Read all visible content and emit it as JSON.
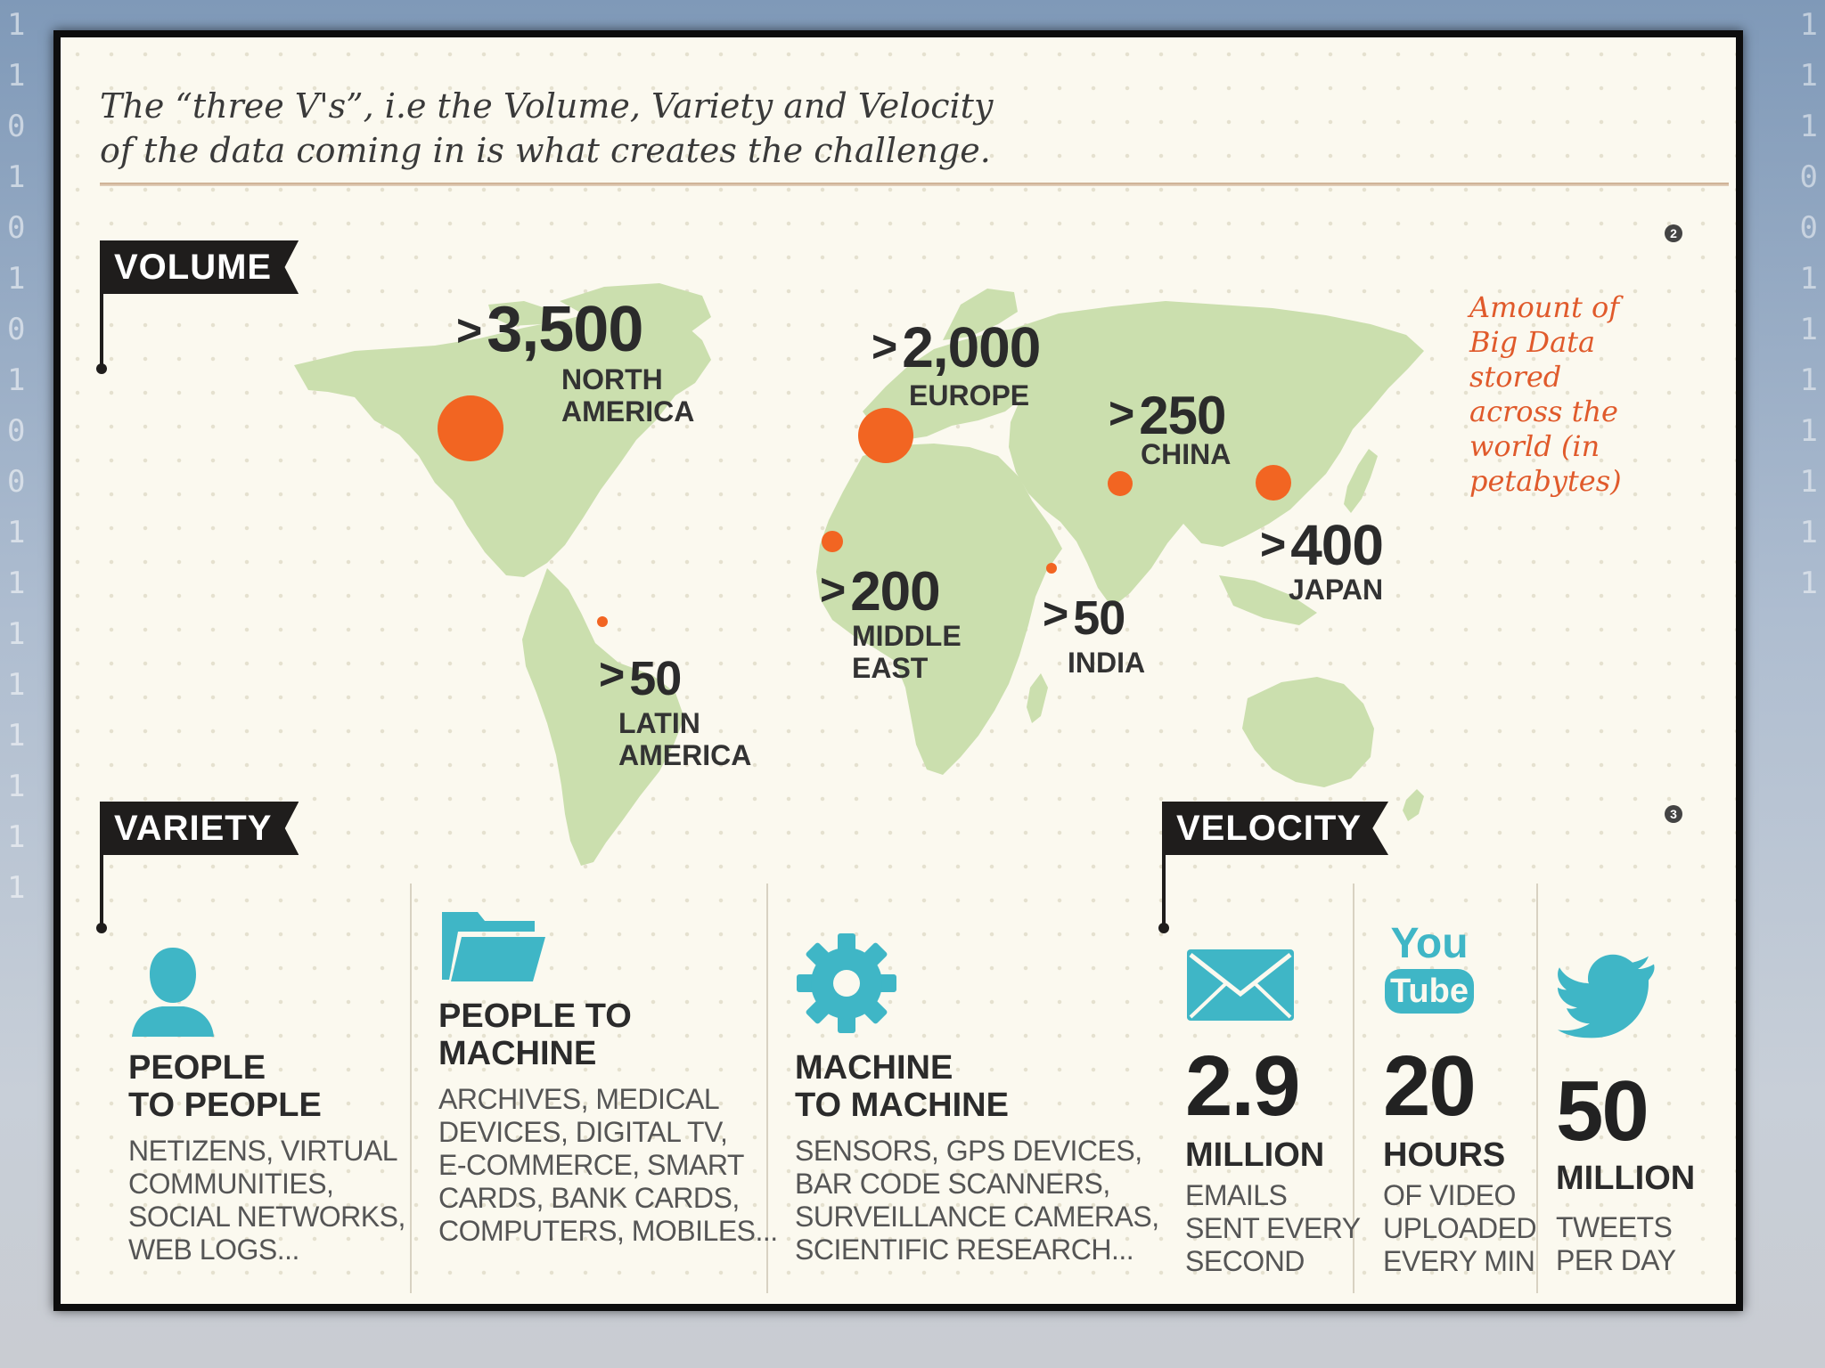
{
  "intro": {
    "line1": "The “three V's”, i.e the Volume, Variety and Velocity",
    "line2": "of the data coming in is what creates the challenge."
  },
  "volume": {
    "tag": "VOLUME",
    "badge": "2",
    "note": "Amount of\nBig Data\nstored\nacross the\nworld (in\npetabytes)",
    "prefix": ">",
    "regions": [
      {
        "id": "north-america",
        "value": "3,500",
        "label": "NORTH\nAMERICA"
      },
      {
        "id": "europe",
        "value": "2,000",
        "label": "EUROPE"
      },
      {
        "id": "china",
        "value": "250",
        "label": "CHINA"
      },
      {
        "id": "japan",
        "value": "400",
        "label": "JAPAN"
      },
      {
        "id": "middle-east",
        "value": "200",
        "label": "MIDDLE\nEAST"
      },
      {
        "id": "india",
        "value": "50",
        "label": "INDIA"
      },
      {
        "id": "latin-america",
        "value": "50",
        "label": "LATIN\nAMERICA"
      }
    ]
  },
  "variety": {
    "tag": "VARIETY",
    "items": [
      {
        "icon": "person-icon",
        "title": "PEOPLE\nTO PEOPLE",
        "body": "NETIZENS, VIRTUAL\nCOMMUNITIES,\nSOCIAL NETWORKS,\nWEB LOGS..."
      },
      {
        "icon": "folder-icon",
        "title": "PEOPLE TO\nMACHINE",
        "body": "ARCHIVES, MEDICAL\nDEVICES, DIGITAL TV,\nE-COMMERCE, SMART\nCARDS, BANK CARDS,\nCOMPUTERS, MOBILES..."
      },
      {
        "icon": "gear-icon",
        "title": "MACHINE\nTO MACHINE",
        "body": "SENSORS, GPS DEVICES,\nBAR CODE SCANNERS,\nSURVEILLANCE CAMERAS,\nSCIENTIFIC RESEARCH..."
      }
    ]
  },
  "velocity": {
    "tag": "VELOCITY",
    "badge": "3",
    "items": [
      {
        "icon": "envelope-icon",
        "number": "2.9",
        "unit": "MILLION",
        "desc": "EMAILS\nSENT EVERY\nSECOND"
      },
      {
        "icon": "youtube-icon",
        "icon_text_top": "You",
        "icon_text_bottom": "Tube",
        "number": "20",
        "unit": "HOURS",
        "desc": "OF VIDEO\nUPLOADED\nEVERY MIN"
      },
      {
        "icon": "twitter-bird-icon",
        "number": "50",
        "unit": "MILLION",
        "desc": "TWEETS\nPER DAY"
      }
    ]
  },
  "colors": {
    "accent_orange": "#f26522",
    "map_green": "#cbdfae",
    "teal": "#3fb6c6",
    "note_orange": "#e05a2b"
  }
}
